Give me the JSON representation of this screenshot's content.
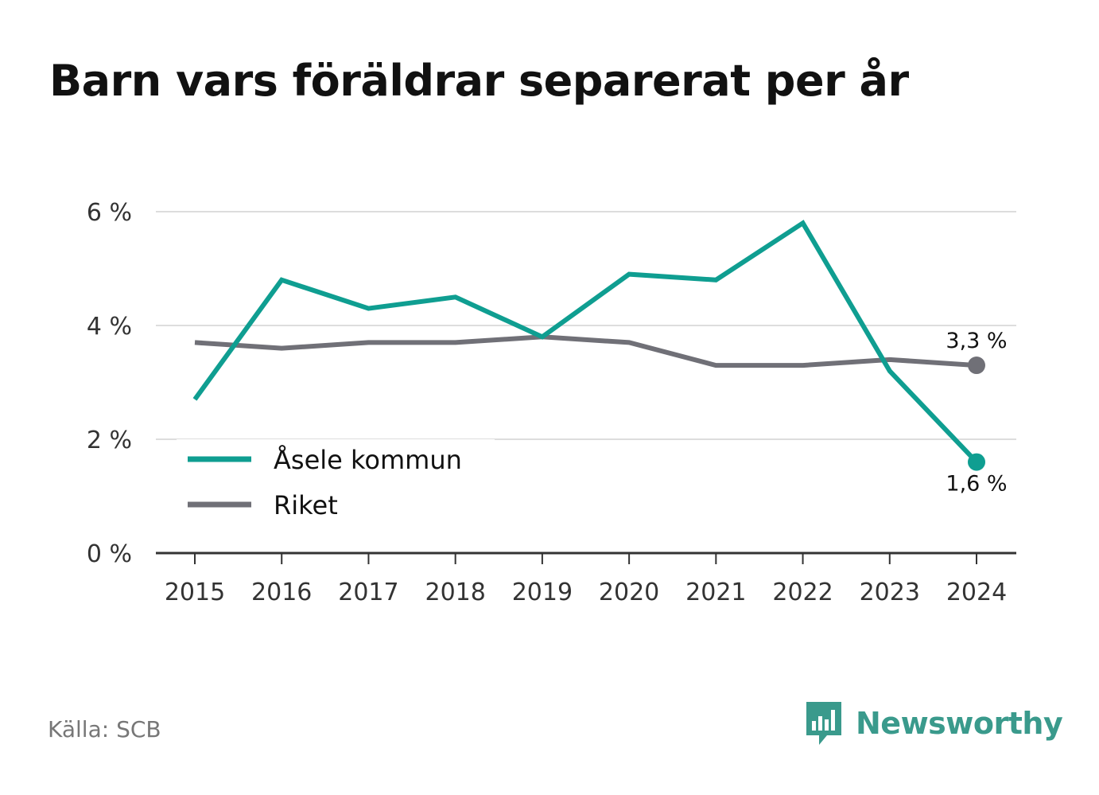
{
  "title": "Barn vars föräldrar separerat per år",
  "source": "Källa: SCB",
  "brand": {
    "name": "Newsworthy",
    "icon": "newsworthy-logo-icon",
    "color": "#3a9a8c"
  },
  "chart_data": {
    "type": "line",
    "title": "Barn vars föräldrar separerat per år",
    "x": [
      2015,
      2016,
      2017,
      2018,
      2019,
      2020,
      2021,
      2022,
      2023,
      2024
    ],
    "x_tick_labels": [
      "2015",
      "2016",
      "2017",
      "2018",
      "2019",
      "2020",
      "2021",
      "2022",
      "2023",
      "2024"
    ],
    "ylim": [
      0,
      6
    ],
    "y_ticks": [
      0,
      2,
      4,
      6
    ],
    "y_tick_labels": [
      "0 %",
      "2 %",
      "4 %",
      "6 %"
    ],
    "grid": true,
    "legend_position": "bottom-left",
    "series": [
      {
        "name": "Åsele kommun",
        "color": "#0f9e91",
        "values": [
          2.7,
          4.8,
          4.3,
          4.5,
          3.8,
          4.9,
          4.8,
          5.8,
          3.2,
          1.6
        ],
        "end_label": "1,6 %"
      },
      {
        "name": "Riket",
        "color": "#707077",
        "values": [
          3.7,
          3.6,
          3.7,
          3.7,
          3.8,
          3.7,
          3.3,
          3.3,
          3.4,
          3.3
        ],
        "end_label": "3,3 %"
      }
    ]
  }
}
